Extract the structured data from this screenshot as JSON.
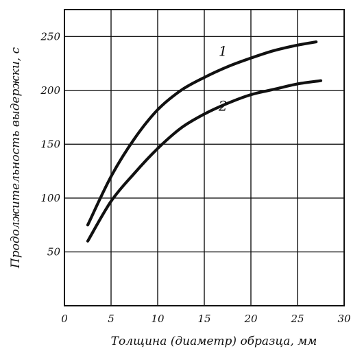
{
  "chart_data": {
    "type": "line",
    "xlabel": "Толщина (диаметр) образца, мм",
    "ylabel": "Продолжительность выдержки, с",
    "xlim": [
      0,
      30
    ],
    "ylim": [
      0,
      275
    ],
    "x_ticks": [
      0,
      5,
      10,
      15,
      20,
      25,
      30
    ],
    "y_ticks": [
      50,
      100,
      150,
      200,
      250
    ],
    "x_tick_labels": [
      "0",
      "5",
      "10",
      "15",
      "20",
      "25",
      "30"
    ],
    "y_tick_labels": [
      "50",
      "100",
      "150",
      "200",
      "250"
    ],
    "grid": true,
    "colors": {
      "line": "#111111",
      "grid": "#111111",
      "background": "#ffffff"
    },
    "series": [
      {
        "label": "1",
        "label_at": {
          "x": 17,
          "y": 232
        },
        "points": [
          {
            "x": 2.5,
            "y": 75
          },
          {
            "x": 5,
            "y": 120
          },
          {
            "x": 7.5,
            "y": 155
          },
          {
            "x": 10,
            "y": 182
          },
          {
            "x": 12.5,
            "y": 200
          },
          {
            "x": 15,
            "y": 212
          },
          {
            "x": 17.5,
            "y": 222
          },
          {
            "x": 20,
            "y": 230
          },
          {
            "x": 22.5,
            "y": 237
          },
          {
            "x": 25,
            "y": 242
          },
          {
            "x": 27,
            "y": 245
          }
        ]
      },
      {
        "label": "2",
        "label_at": {
          "x": 17,
          "y": 181
        },
        "points": [
          {
            "x": 2.5,
            "y": 60
          },
          {
            "x": 5,
            "y": 97
          },
          {
            "x": 7.5,
            "y": 123
          },
          {
            "x": 10,
            "y": 146
          },
          {
            "x": 12.5,
            "y": 165
          },
          {
            "x": 15,
            "y": 178
          },
          {
            "x": 17.5,
            "y": 188
          },
          {
            "x": 20,
            "y": 196
          },
          {
            "x": 22.5,
            "y": 201
          },
          {
            "x": 25,
            "y": 206
          },
          {
            "x": 27.5,
            "y": 209
          }
        ]
      }
    ]
  }
}
